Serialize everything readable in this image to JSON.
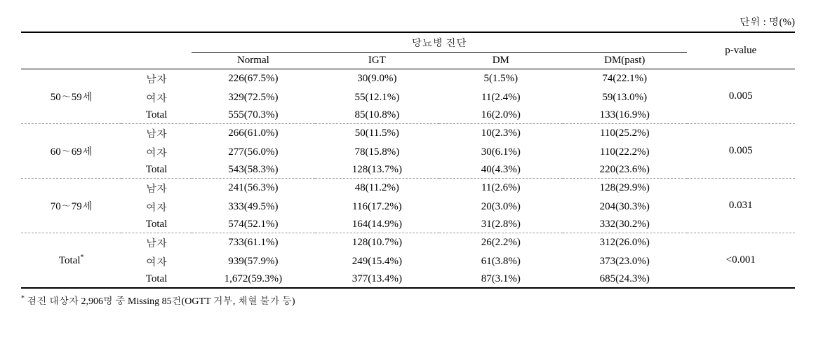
{
  "unit_label": "단위 : 명(%)",
  "header": {
    "group": "당뇨병 진단",
    "cols": [
      "Normal",
      "IGT",
      "DM",
      "DM(past)"
    ],
    "pvalue": "p-value"
  },
  "groups": [
    {
      "age": "50∼59세",
      "rows": [
        {
          "sex": "남자",
          "cells": [
            "226(67.5%)",
            "30(9.0%)",
            "5(1.5%)",
            "74(22.1%)"
          ]
        },
        {
          "sex": "여자",
          "cells": [
            "329(72.5%)",
            "55(12.1%)",
            "11(2.4%)",
            "59(13.0%)"
          ]
        },
        {
          "sex": "Total",
          "cells": [
            "555(70.3%)",
            "85(10.8%)",
            "16(2.0%)",
            "133(16.9%)"
          ]
        }
      ],
      "pvalue": "0.005"
    },
    {
      "age": "60∼69세",
      "rows": [
        {
          "sex": "남자",
          "cells": [
            "266(61.0%)",
            "50(11.5%)",
            "10(2.3%)",
            "110(25.2%)"
          ]
        },
        {
          "sex": "여자",
          "cells": [
            "277(56.0%)",
            "78(15.8%)",
            "30(6.1%)",
            "110(22.2%)"
          ]
        },
        {
          "sex": "Total",
          "cells": [
            "543(58.3%)",
            "128(13.7%)",
            "40(4.3%)",
            "220(23.6%)"
          ]
        }
      ],
      "pvalue": "0.005"
    },
    {
      "age": "70∼79세",
      "rows": [
        {
          "sex": "남자",
          "cells": [
            "241(56.3%)",
            "48(11.2%)",
            "11(2.6%)",
            "128(29.9%)"
          ]
        },
        {
          "sex": "여자",
          "cells": [
            "333(49.5%)",
            "116(17.2%)",
            "20(3.0%)",
            "204(30.3%)"
          ]
        },
        {
          "sex": "Total",
          "cells": [
            "574(52.1%)",
            "164(14.9%)",
            "31(2.8%)",
            "332(30.2%)"
          ]
        }
      ],
      "pvalue": "0.031"
    },
    {
      "age": "Total",
      "age_sup": "*",
      "rows": [
        {
          "sex": "남자",
          "cells": [
            "733(61.1%)",
            "128(10.7%)",
            "26(2.2%)",
            "312(26.0%)"
          ]
        },
        {
          "sex": "여자",
          "cells": [
            "939(57.9%)",
            "249(15.4%)",
            "61(3.8%)",
            "373(23.0%)"
          ]
        },
        {
          "sex": "Total",
          "cells": [
            "1,672(59.3%)",
            "377(13.4%)",
            "87(3.1%)",
            "685(24.3%)"
          ]
        }
      ],
      "pvalue": "<0.001"
    }
  ],
  "footnote_marker": "*",
  "footnote_text": " 검진 대상자 2,906명 중 Missing 85건(OGTT 거부, 채혈 불가 등)"
}
